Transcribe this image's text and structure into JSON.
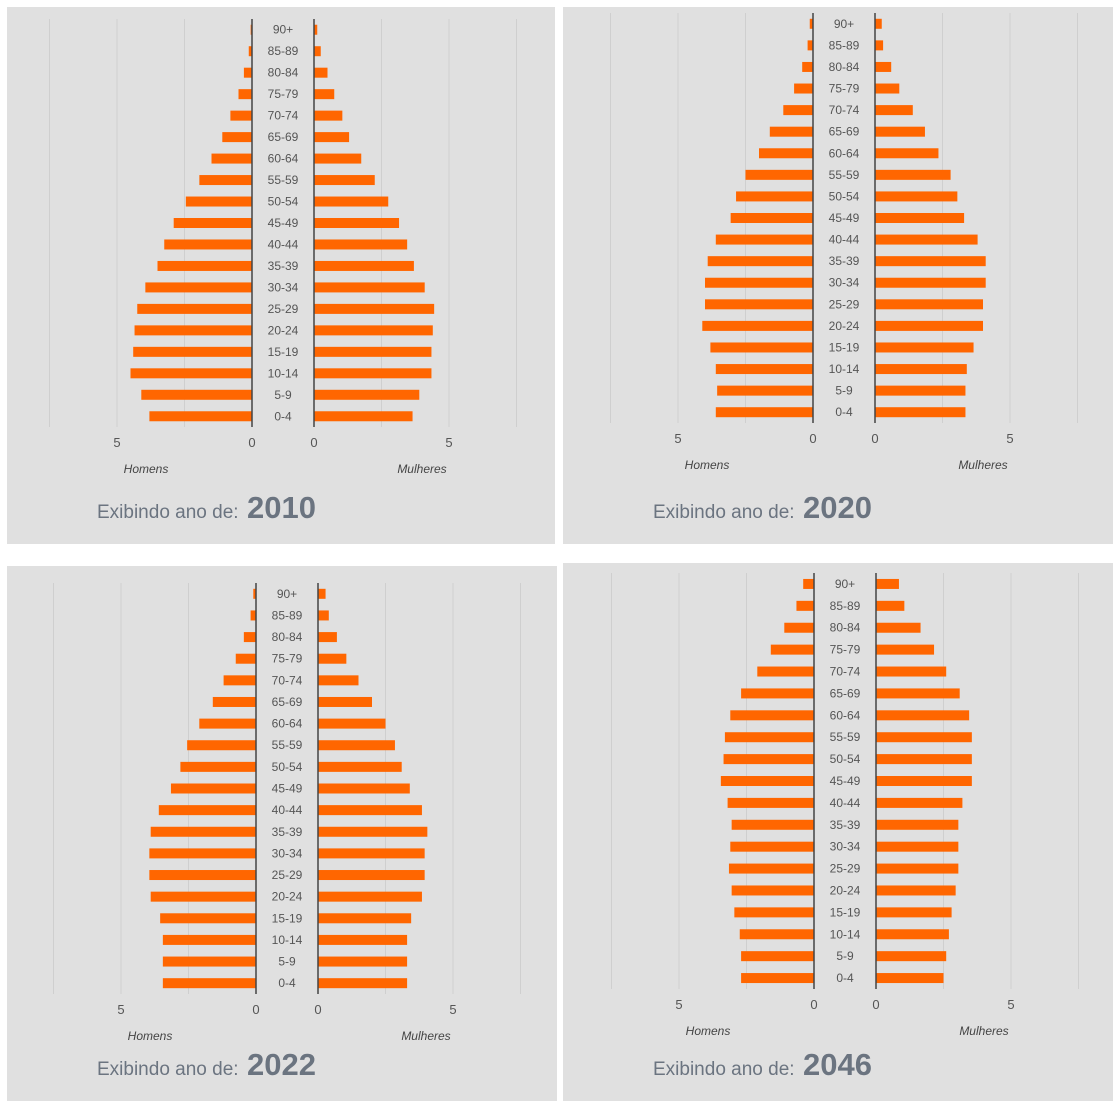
{
  "colors": {
    "bar": "#ff6600",
    "background": "#e0e0e0",
    "axis": "#444444",
    "grid": "#cfcfcf",
    "text": "#6b7480"
  },
  "chart_data": [
    {
      "type": "bar",
      "categories": [
        "90+",
        "85-89",
        "80-84",
        "75-79",
        "70-74",
        "65-69",
        "60-64",
        "55-59",
        "50-54",
        "45-49",
        "40-44",
        "35-39",
        "30-34",
        "25-29",
        "20-24",
        "15-19",
        "10-14",
        "5-9",
        "0-4"
      ],
      "series": [
        {
          "name": "Homens",
          "values": [
            0.05,
            0.12,
            0.3,
            0.5,
            0.8,
            1.1,
            1.5,
            1.95,
            2.45,
            2.9,
            3.25,
            3.5,
            3.95,
            4.25,
            4.35,
            4.4,
            4.5,
            4.1,
            3.8
          ]
        },
        {
          "name": "Mulheres",
          "values": [
            0.12,
            0.25,
            0.5,
            0.75,
            1.05,
            1.3,
            1.75,
            2.25,
            2.75,
            3.15,
            3.45,
            3.7,
            4.1,
            4.45,
            4.4,
            4.35,
            4.35,
            3.9,
            3.65
          ]
        }
      ],
      "xticks": [
        5,
        0
      ],
      "xlim": [
        0,
        7.5
      ],
      "caption_text": "Exibindo ano de:",
      "caption_year": "2010"
    },
    {
      "type": "bar",
      "categories": [
        "90+",
        "85-89",
        "80-84",
        "75-79",
        "70-74",
        "65-69",
        "60-64",
        "55-59",
        "50-54",
        "45-49",
        "40-44",
        "35-39",
        "30-34",
        "25-29",
        "20-24",
        "15-19",
        "10-14",
        "5-9",
        "0-4"
      ],
      "series": [
        {
          "name": "Homens",
          "values": [
            0.12,
            0.2,
            0.4,
            0.7,
            1.1,
            1.6,
            2.0,
            2.5,
            2.85,
            3.05,
            3.6,
            3.9,
            4.0,
            4.0,
            4.1,
            3.8,
            3.6,
            3.55,
            3.6
          ]
        },
        {
          "name": "Mulheres",
          "values": [
            0.25,
            0.3,
            0.6,
            0.9,
            1.4,
            1.85,
            2.35,
            2.8,
            3.05,
            3.3,
            3.8,
            4.1,
            4.1,
            4.0,
            4.0,
            3.65,
            3.4,
            3.35,
            3.35
          ]
        }
      ],
      "xticks": [
        5,
        0
      ],
      "xlim": [
        0,
        7.5
      ],
      "caption_text": "Exibindo ano de:",
      "caption_year": "2020"
    },
    {
      "type": "bar",
      "categories": [
        "90+",
        "85-89",
        "80-84",
        "75-79",
        "70-74",
        "65-69",
        "60-64",
        "55-59",
        "50-54",
        "45-49",
        "40-44",
        "35-39",
        "30-34",
        "25-29",
        "20-24",
        "15-19",
        "10-14",
        "5-9",
        "0-4"
      ],
      "series": [
        {
          "name": "Homens",
          "values": [
            0.1,
            0.2,
            0.45,
            0.75,
            1.2,
            1.6,
            2.1,
            2.55,
            2.8,
            3.15,
            3.6,
            3.9,
            3.95,
            3.95,
            3.9,
            3.55,
            3.45,
            3.45,
            3.45
          ]
        },
        {
          "name": "Mulheres",
          "values": [
            0.28,
            0.4,
            0.7,
            1.05,
            1.5,
            2.0,
            2.5,
            2.85,
            3.1,
            3.4,
            3.85,
            4.05,
            3.95,
            3.95,
            3.85,
            3.45,
            3.3,
            3.3,
            3.3
          ]
        }
      ],
      "xticks": [
        5,
        0
      ],
      "xlim": [
        0,
        7.5
      ],
      "caption_text": "Exibindo ano de:",
      "caption_year": "2022"
    },
    {
      "type": "bar",
      "categories": [
        "90+",
        "85-89",
        "80-84",
        "75-79",
        "70-74",
        "65-69",
        "60-64",
        "55-59",
        "50-54",
        "45-49",
        "40-44",
        "35-39",
        "30-34",
        "25-29",
        "20-24",
        "15-19",
        "10-14",
        "5-9",
        "0-4"
      ],
      "series": [
        {
          "name": "Homens",
          "values": [
            0.4,
            0.65,
            1.1,
            1.6,
            2.1,
            2.7,
            3.1,
            3.3,
            3.35,
            3.45,
            3.2,
            3.05,
            3.1,
            3.15,
            3.05,
            2.95,
            2.75,
            2.7,
            2.7
          ]
        },
        {
          "name": "Mulheres",
          "values": [
            0.85,
            1.05,
            1.65,
            2.15,
            2.6,
            3.1,
            3.45,
            3.55,
            3.55,
            3.55,
            3.2,
            3.05,
            3.05,
            3.05,
            2.95,
            2.8,
            2.7,
            2.6,
            2.5
          ]
        }
      ],
      "xticks": [
        5,
        0
      ],
      "xlim": [
        0,
        7.5
      ],
      "caption_text": "Exibindo ano de:",
      "caption_year": "2046"
    }
  ]
}
